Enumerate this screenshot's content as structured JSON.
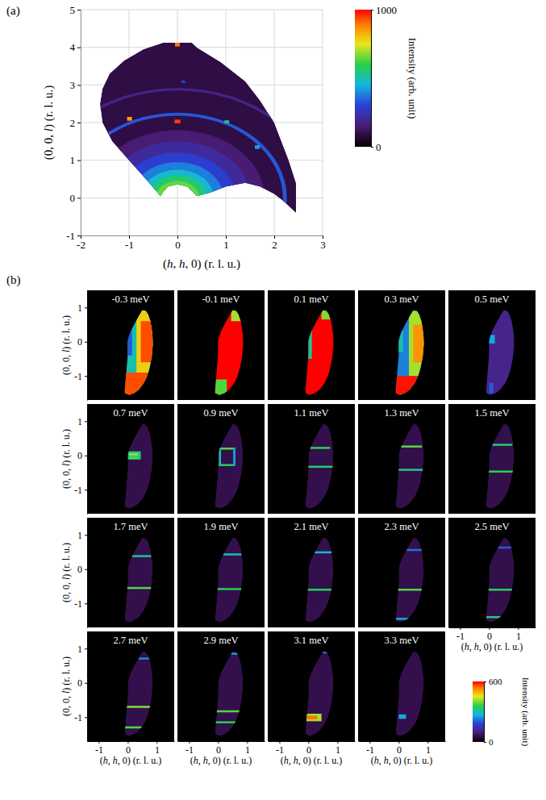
{
  "chart_data": [
    {
      "type": "heatmap",
      "panel_label": "(a)",
      "x_label": "(h, h, 0) (r. l. u.)",
      "y_label": "(0, 0, l) (r. l. u.)",
      "xlim": [
        -2,
        3
      ],
      "ylim": [
        -1,
        5
      ],
      "xticks": [
        -2,
        -1,
        0,
        1,
        2,
        3
      ],
      "yticks": [
        -1,
        0,
        1,
        2,
        3,
        4,
        5
      ],
      "grid": true,
      "colorbar": {
        "label": "Intensity (arb. unit)",
        "range": [
          0,
          1000
        ],
        "ticks": [
          0,
          1000
        ]
      },
      "coverage": {
        "h": [
          2.45,
          2.45,
          2.3,
          2.0,
          1.7,
          1.4,
          0.9,
          0.4,
          0.3,
          -0.3,
          -0.7,
          -1.1,
          -1.4,
          -1.55,
          -1.6,
          -1.55,
          -1.35,
          -1.0,
          -0.65,
          -0.35,
          -0.3,
          -0.2,
          0,
          0.2,
          0.33,
          0.4,
          0.7,
          1.0,
          1.4,
          1.7,
          2.0,
          2.2
        ],
        "l": [
          -0.4,
          0.4,
          1.0,
          2.0,
          2.6,
          3.1,
          3.6,
          4.0,
          4.12,
          4.12,
          3.95,
          3.65,
          3.3,
          2.9,
          2.5,
          2.0,
          1.5,
          1.0,
          0.5,
          0.05,
          0.15,
          0.3,
          0.36,
          0.3,
          0.15,
          0.05,
          0.15,
          0.3,
          0.4,
          0.3,
          0.1,
          -0.1
        ],
        "value": 90
      },
      "center": [
        0,
        0
      ],
      "discs": [
        {
          "radius": 1.8,
          "value": 150
        },
        {
          "radius": 1.5,
          "value": 210
        },
        {
          "radius": 1.2,
          "value": 290
        },
        {
          "radius": 0.95,
          "value": 380
        },
        {
          "radius": 0.75,
          "value": 470
        },
        {
          "radius": 0.6,
          "value": 560
        },
        {
          "radius": 0.45,
          "value": 650
        }
      ],
      "rings": [
        {
          "radius": [
            2.18,
            2.26
          ],
          "value": 330
        },
        {
          "radius": [
            2.85,
            2.92
          ],
          "value": 180
        }
      ],
      "spots": [
        {
          "h": [
            -0.06,
            0.06
          ],
          "l": [
            1.98,
            2.08
          ],
          "value": 950
        },
        {
          "h": [
            -0.05,
            0.05
          ],
          "l": [
            4.02,
            4.12
          ],
          "value": 900
        },
        {
          "h": [
            -1.04,
            -0.94
          ],
          "l": [
            2.05,
            2.15
          ],
          "value": 850
        },
        {
          "h": [
            0.97,
            1.07
          ],
          "l": [
            1.98,
            2.06
          ],
          "value": 520
        },
        {
          "h": [
            1.6,
            1.7
          ],
          "l": [
            1.3,
            1.4
          ],
          "value": 420
        },
        {
          "h": [
            0.08,
            0.16
          ],
          "l": [
            3.05,
            3.12
          ],
          "value": 300
        }
      ]
    },
    {
      "type": "heatmap",
      "panel_label": "(b)",
      "x_label": "(h, h, 0) (r. l. u.)",
      "y_label": "(0, 0, l) (r. l. u.)",
      "xlim": [
        -1.4,
        1.6
      ],
      "ylim": [
        -1.7,
        1.5
      ],
      "xticks": [
        -1,
        0,
        1
      ],
      "yticks": [
        -1,
        0,
        1
      ],
      "colorbar": {
        "label": "Intensity (arb. unit)",
        "range": [
          0,
          600
        ],
        "ticks": [
          0,
          600
        ]
      },
      "coverage": {
        "h": [
          0.5,
          0.62,
          0.7,
          0.78,
          0.82,
          0.85,
          0.86,
          0.86,
          0.85,
          0.83,
          0.79,
          0.74,
          0.67,
          0.56,
          0.38,
          0.22,
          0.05,
          -0.1,
          -0.1,
          -0.08,
          -0.06,
          -0.04,
          -0.02,
          0.0,
          0.0,
          0.0,
          0.02,
          0.1,
          0.22,
          0.35,
          0.45
        ],
        "l": [
          0.92,
          0.9,
          0.8,
          0.6,
          0.4,
          0.2,
          0.0,
          -0.1,
          -0.2,
          -0.4,
          -0.6,
          -0.8,
          -1.0,
          -1.2,
          -1.4,
          -1.5,
          -1.55,
          -1.5,
          -1.4,
          -1.2,
          -1.0,
          -0.8,
          -0.6,
          -0.4,
          -0.2,
          0.0,
          0.1,
          0.3,
          0.5,
          0.7,
          0.85
        ],
        "value": 60
      },
      "panels": [
        {
          "title": "-0.3 meV",
          "cells": [
            {
              "h": [
                -0.2,
                0.9
              ],
              "l": [
                -1.6,
                1.0
              ],
              "value": 300
            },
            {
              "h": [
                0.3,
                0.9
              ],
              "l": [
                -0.9,
                0.95
              ],
              "value": 470
            },
            {
              "h": [
                0.45,
                0.9
              ],
              "l": [
                -0.6,
                0.6
              ],
              "value": 560
            },
            {
              "h": [
                -0.2,
                0.9
              ],
              "l": [
                -1.6,
                -0.9
              ],
              "value": 560
            },
            {
              "h": [
                -0.2,
                0.15
              ],
              "l": [
                -0.4,
                0.4
              ],
              "value": 200
            }
          ]
        },
        {
          "title": "-0.1 meV",
          "cells": [
            {
              "h": [
                -0.2,
                0.9
              ],
              "l": [
                -1.6,
                1.0
              ],
              "value": 600
            },
            {
              "h": [
                -0.2,
                0.3
              ],
              "l": [
                -1.6,
                -1.1
              ],
              "value": 380
            },
            {
              "h": [
                0.45,
                0.9
              ],
              "l": [
                0.6,
                1.0
              ],
              "value": 420
            }
          ]
        },
        {
          "title": "0.1 meV",
          "cells": [
            {
              "h": [
                -0.2,
                0.9
              ],
              "l": [
                -1.6,
                1.0
              ],
              "value": 600
            },
            {
              "h": [
                -0.2,
                0.12
              ],
              "l": [
                -0.5,
                0.5
              ],
              "value": 320
            },
            {
              "h": [
                0.45,
                0.9
              ],
              "l": [
                0.65,
                1.0
              ],
              "value": 400
            }
          ]
        },
        {
          "title": "0.3 meV",
          "cells": [
            {
              "h": [
                -0.2,
                0.9
              ],
              "l": [
                -1.6,
                1.0
              ],
              "value": 230
            },
            {
              "h": [
                0.35,
                0.9
              ],
              "l": [
                -1.0,
                0.9
              ],
              "value": 420
            },
            {
              "h": [
                0.5,
                0.9
              ],
              "l": [
                -0.6,
                0.5
              ],
              "value": 520
            },
            {
              "h": [
                -0.2,
                0.9
              ],
              "l": [
                -1.6,
                -1.0
              ],
              "value": 590
            },
            {
              "h": [
                -0.2,
                0.15
              ],
              "l": [
                -0.3,
                0.3
              ],
              "value": 300
            }
          ]
        },
        {
          "title": "0.5 meV",
          "cells": [
            {
              "h": [
                -0.2,
                0.9
              ],
              "l": [
                -1.6,
                1.0
              ],
              "value": 110
            },
            {
              "h": [
                0.0,
                0.2
              ],
              "l": [
                -0.05,
                0.2
              ],
              "value": 260
            },
            {
              "h": [
                0.0,
                0.15
              ],
              "l": [
                -1.5,
                -1.2
              ],
              "value": 200
            }
          ]
        },
        {
          "title": "0.7 meV",
          "cells": [
            {
              "h": [
                0.0,
                0.45
              ],
              "l": [
                -0.12,
                0.12
              ],
              "value": 330
            },
            {
              "h": [
                0.05,
                0.35
              ],
              "l": [
                0.0,
                0.06
              ],
              "value": 420
            },
            {
              "h": [
                0.05,
                0.35
              ],
              "l": [
                -0.1,
                -0.04
              ],
              "value": 380
            }
          ]
        },
        {
          "title": "0.9 meV",
          "cells": [
            {
              "h": [
                0.03,
                0.6
              ],
              "l": [
                0.17,
                0.23
              ],
              "value": 380
            },
            {
              "h": [
                0.03,
                0.6
              ],
              "l": [
                -0.31,
                -0.25
              ],
              "value": 360
            },
            {
              "h": [
                0.03,
                0.1
              ],
              "l": [
                -0.31,
                0.23
              ],
              "value": 300
            },
            {
              "h": [
                0.52,
                0.6
              ],
              "l": [
                -0.31,
                0.23
              ],
              "value": 250
            }
          ]
        },
        {
          "title": "1.1 meV",
          "cells": [
            {
              "h": [
                0.03,
                0.75
              ],
              "l": [
                0.19,
                0.25
              ],
              "value": 360
            },
            {
              "h": [
                -0.1,
                0.9
              ],
              "l": [
                -0.36,
                -0.3
              ],
              "value": 340
            }
          ]
        },
        {
          "title": "1.3 meV",
          "cells": [
            {
              "h": [
                0.08,
                0.8
              ],
              "l": [
                0.23,
                0.29
              ],
              "value": 380
            },
            {
              "h": [
                -0.1,
                0.9
              ],
              "l": [
                -0.45,
                -0.39
              ],
              "value": 330
            }
          ]
        },
        {
          "title": "1.5 meV",
          "cells": [
            {
              "h": [
                0.12,
                0.8
              ],
              "l": [
                0.28,
                0.34
              ],
              "value": 340
            },
            {
              "h": [
                -0.1,
                0.9
              ],
              "l": [
                -0.5,
                -0.44
              ],
              "value": 360
            }
          ]
        },
        {
          "title": "1.7 meV",
          "cells": [
            {
              "h": [
                0.15,
                0.8
              ],
              "l": [
                0.35,
                0.41
              ],
              "value": 320
            },
            {
              "h": [
                -0.1,
                0.9
              ],
              "l": [
                -0.58,
                -0.52
              ],
              "value": 380
            }
          ]
        },
        {
          "title": "1.9 meV",
          "cells": [
            {
              "h": [
                0.18,
                0.8
              ],
              "l": [
                0.4,
                0.46
              ],
              "value": 300
            },
            {
              "h": [
                -0.1,
                0.9
              ],
              "l": [
                -0.61,
                -0.55
              ],
              "value": 360
            }
          ]
        },
        {
          "title": "2.1 meV",
          "cells": [
            {
              "h": [
                0.22,
                0.8
              ],
              "l": [
                0.46,
                0.52
              ],
              "value": 280
            },
            {
              "h": [
                -0.1,
                0.9
              ],
              "l": [
                -0.63,
                -0.57
              ],
              "value": 350
            }
          ]
        },
        {
          "title": "2.3 meV",
          "cells": [
            {
              "h": [
                0.28,
                0.8
              ],
              "l": [
                0.53,
                0.59
              ],
              "value": 220
            },
            {
              "h": [
                -0.1,
                0.9
              ],
              "l": [
                -0.63,
                -0.57
              ],
              "value": 380
            },
            {
              "h": [
                -0.1,
                0.9
              ],
              "l": [
                -1.48,
                -1.42
              ],
              "value": 260
            }
          ]
        },
        {
          "title": "2.5 meV",
          "cells": [
            {
              "h": [
                0.32,
                0.8
              ],
              "l": [
                0.6,
                0.66
              ],
              "value": 200
            },
            {
              "h": [
                -0.1,
                0.9
              ],
              "l": [
                -0.63,
                -0.57
              ],
              "value": 350
            },
            {
              "h": [
                -0.1,
                0.9
              ],
              "l": [
                -1.43,
                -1.37
              ],
              "value": 330
            }
          ]
        },
        {
          "title": "2.7 meV",
          "cells": [
            {
              "h": [
                0.38,
                0.8
              ],
              "l": [
                0.68,
                0.74
              ],
              "value": 230
            },
            {
              "h": [
                -0.1,
                0.9
              ],
              "l": [
                -0.73,
                -0.67
              ],
              "value": 400
            },
            {
              "h": [
                -0.1,
                0.9
              ],
              "l": [
                -1.33,
                -1.27
              ],
              "value": 380
            }
          ]
        },
        {
          "title": "2.9 meV",
          "cells": [
            {
              "h": [
                0.45,
                0.8
              ],
              "l": [
                0.82,
                0.88
              ],
              "value": 250
            },
            {
              "h": [
                -0.1,
                0.9
              ],
              "l": [
                -0.86,
                -0.8
              ],
              "value": 380
            },
            {
              "h": [
                -0.1,
                0.9
              ],
              "l": [
                -1.18,
                -1.12
              ],
              "value": 360
            }
          ]
        },
        {
          "title": "3.1 meV",
          "cells": [
            {
              "h": [
                0.5,
                0.8
              ],
              "l": [
                0.86,
                0.92
              ],
              "value": 220
            },
            {
              "h": [
                -0.1,
                0.45
              ],
              "l": [
                -1.12,
                -0.9
              ],
              "value": 420
            },
            {
              "h": [
                -0.1,
                0.3
              ],
              "l": [
                -1.06,
                -0.96
              ],
              "value": 540
            }
          ]
        },
        {
          "title": "3.3 meV",
          "cells": [
            {
              "h": [
                0.0,
                0.25
              ],
              "l": [
                -1.05,
                -0.92
              ],
              "value": 260
            }
          ]
        }
      ]
    }
  ]
}
